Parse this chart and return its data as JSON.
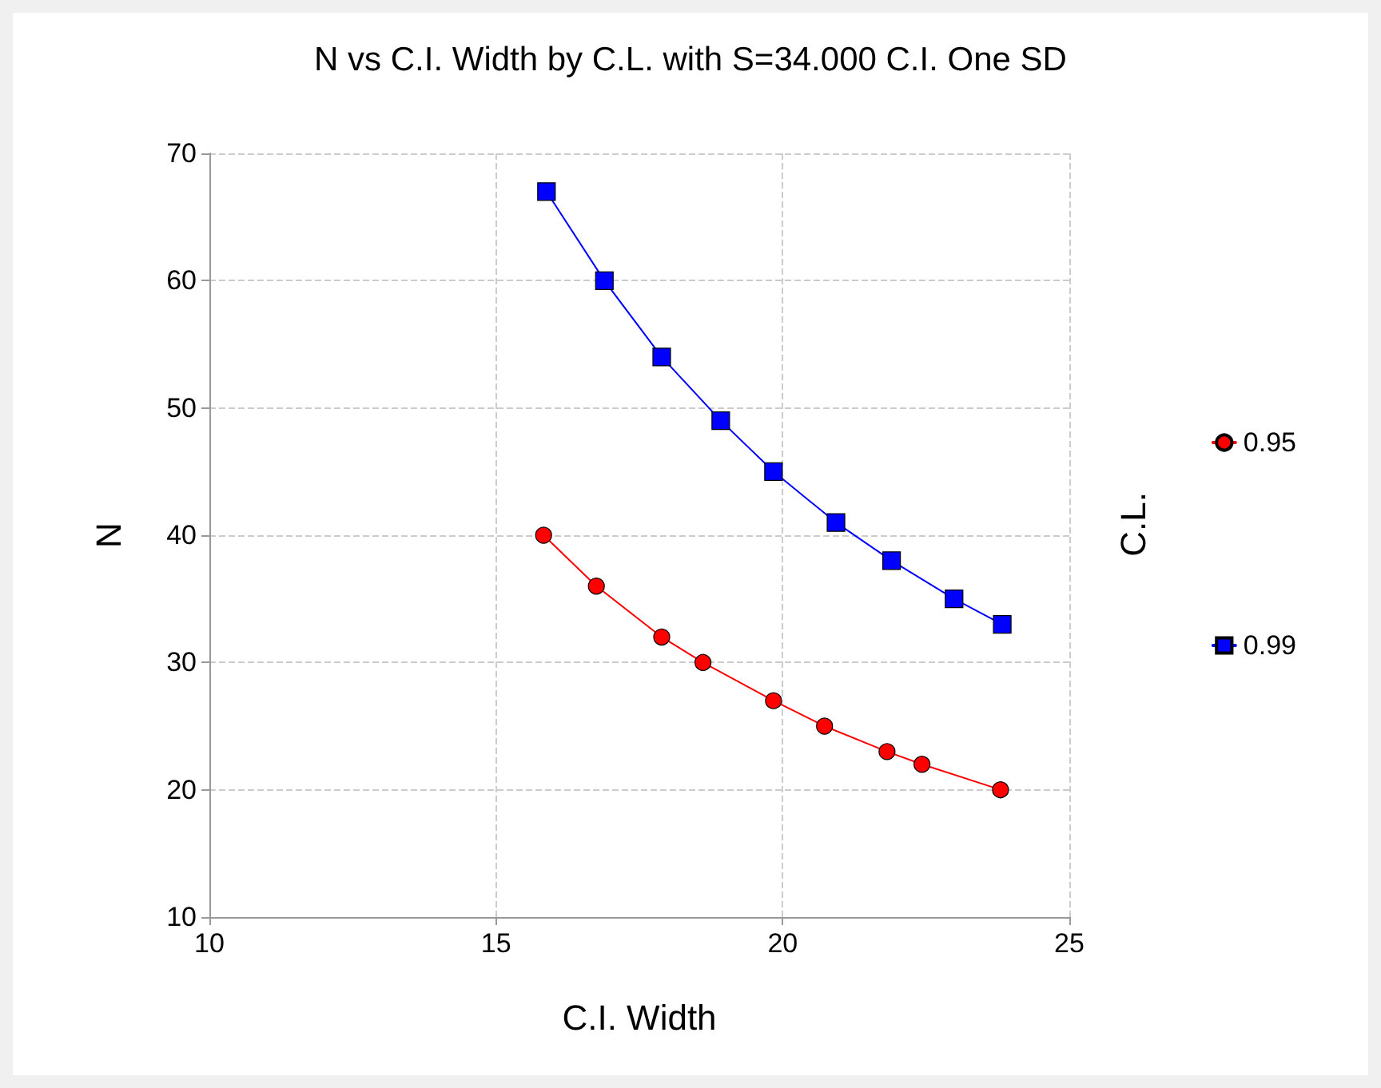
{
  "chart_data": {
    "type": "line",
    "title": "N vs C.I. Width by C.L. with S=34.000 C.I. One SD",
    "xlabel": "C.I. Width",
    "ylabel": "N",
    "legend_title": "C.L.",
    "series": [
      {
        "name": "0.95",
        "color": "#ff0000",
        "marker": "circle",
        "x": [
          15.83,
          16.75,
          17.89,
          18.61,
          19.84,
          20.73,
          21.82,
          22.43,
          23.8
        ],
        "values": [
          40,
          36,
          32,
          30,
          27,
          25,
          23,
          22,
          20
        ]
      },
      {
        "name": "0.99",
        "color": "#0000ff",
        "marker": "square",
        "x": [
          15.88,
          16.89,
          17.89,
          18.92,
          19.84,
          20.93,
          21.9,
          22.99,
          23.83
        ],
        "values": [
          67,
          60,
          54,
          49,
          45,
          41,
          38,
          35,
          33
        ]
      }
    ],
    "xlim": [
      10,
      25
    ],
    "xticks": [
      10,
      15,
      20,
      25
    ],
    "ylim": [
      10,
      70
    ],
    "yticks": [
      10,
      20,
      30,
      40,
      50,
      60,
      70
    ],
    "grid": true,
    "legend": "right",
    "line_style": "solid"
  }
}
